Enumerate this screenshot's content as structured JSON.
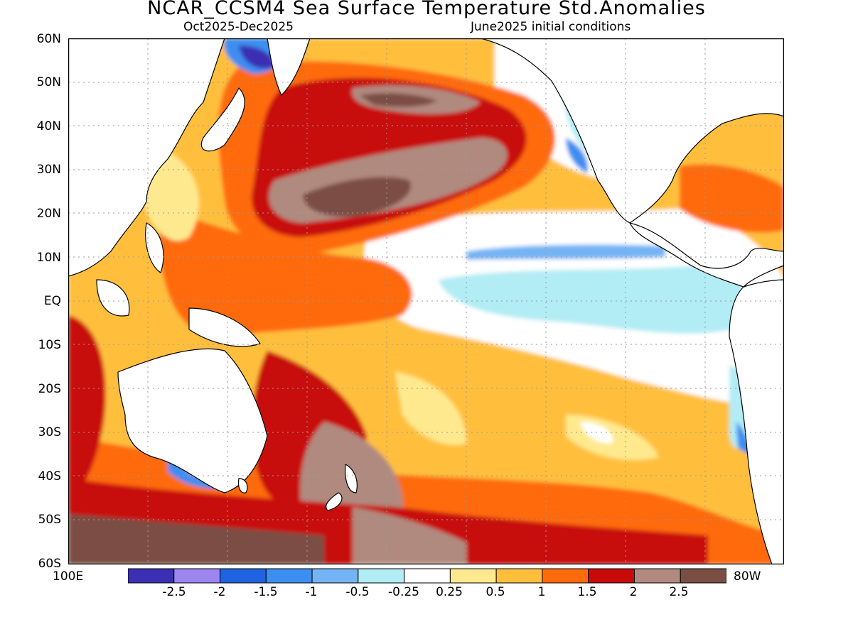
{
  "header": {
    "title": "NCAR_CCSM4 Sea Surface Temperature Std.Anomalies",
    "period": "Oct2025-Dec2025",
    "initial": "June2025 initial conditions"
  },
  "axes": {
    "lat_labels": [
      "60N",
      "50N",
      "40N",
      "30N",
      "20N",
      "10N",
      "EQ",
      "10S",
      "20S",
      "30S",
      "40S",
      "50S",
      "60S"
    ],
    "lon_left": "100E",
    "lon_right": "80W"
  },
  "colorbar": {
    "labels": [
      "-2.5",
      "-2",
      "-1.5",
      "-1",
      "-0.5",
      "-0.25",
      "0.25",
      "0.5",
      "1",
      "1.5",
      "2",
      "2.5"
    ],
    "colors": [
      "#3b2fb3",
      "#9d86f0",
      "#2063e0",
      "#3c8ef0",
      "#74b4f4",
      "#b2ecf4",
      "#ffffff",
      "#ffe98e",
      "#ffbf3c",
      "#ff6a0a",
      "#c80a0a",
      "#b18a7f",
      "#7b4e44"
    ]
  },
  "map": {
    "land_color": "#ffffff",
    "coastline_color": "#000000",
    "grid": "dotted",
    "gridline_color": "#9a9a9a"
  }
}
